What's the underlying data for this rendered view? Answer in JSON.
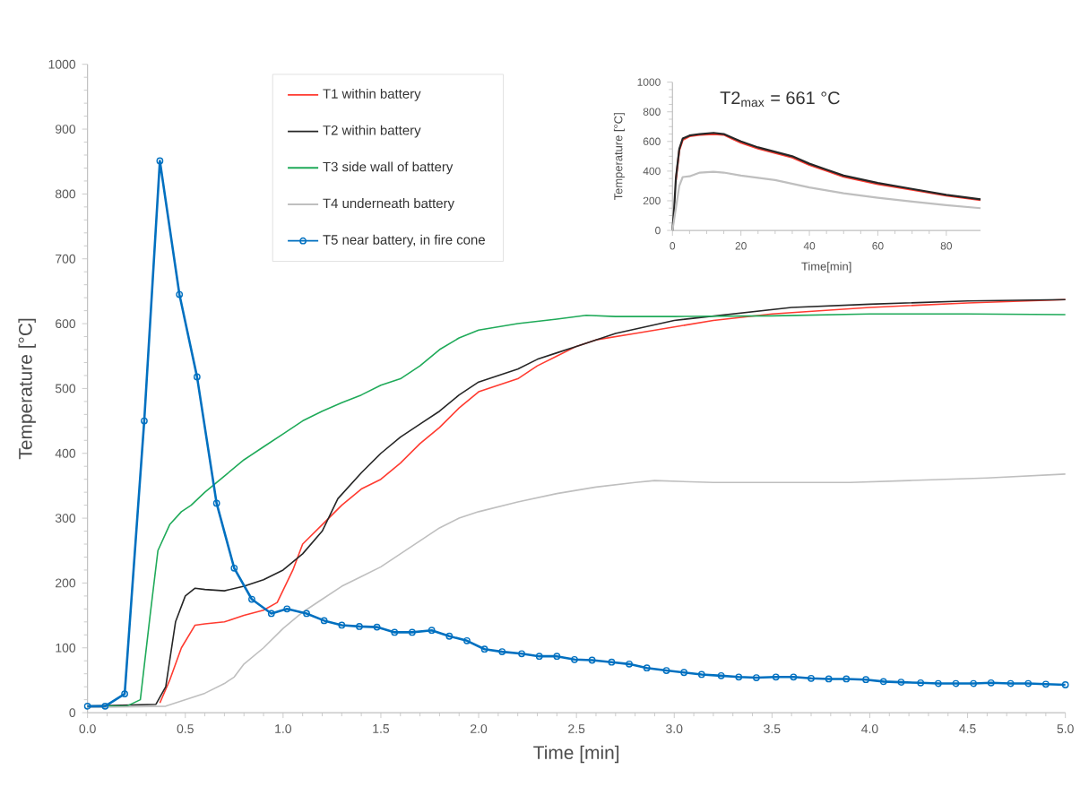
{
  "chart_data": [
    {
      "type": "line",
      "xlabel": "Time [min]",
      "ylabel": "Temperature [°C]",
      "xlim": [
        0,
        5
      ],
      "xticks": [
        {
          "value": 0,
          "label": "0.0"
        },
        {
          "value": 0.5,
          "label": "0.5"
        },
        {
          "value": 1,
          "label": "1.0"
        },
        {
          "value": 1.5,
          "label": "1.5"
        },
        {
          "value": 2,
          "label": "2.0"
        },
        {
          "value": 2.5,
          "label": "2.5"
        },
        {
          "value": 3,
          "label": "3.0"
        },
        {
          "value": 3.5,
          "label": "3.5"
        },
        {
          "value": 4,
          "label": "4.0"
        },
        {
          "value": 4.5,
          "label": "4.5"
        },
        {
          "value": 5,
          "label": "5.0"
        }
      ],
      "ylim": [
        0,
        1000
      ],
      "yticks": [
        0,
        100,
        200,
        300,
        400,
        500,
        600,
        700,
        800,
        900,
        1000
      ],
      "grid": false,
      "legend": "top",
      "line_style": "solid",
      "series": [
        {
          "name": "T1 within battery",
          "color": "#ff3b30",
          "marker": "none",
          "x": [
            0.37,
            0.42,
            0.48,
            0.55,
            0.6,
            0.7,
            0.8,
            0.9,
            0.97,
            1.05,
            1.1,
            1.2,
            1.3,
            1.4,
            1.5,
            1.6,
            1.7,
            1.8,
            1.9,
            2.0,
            2.1,
            2.2,
            2.3,
            2.4,
            2.5,
            2.6,
            2.8,
            3.0,
            3.2,
            3.5,
            4.0,
            4.5,
            5.0
          ],
          "values": [
            15,
            50,
            100,
            135,
            137,
            140,
            150,
            158,
            170,
            220,
            260,
            290,
            320,
            345,
            360,
            385,
            415,
            440,
            470,
            495,
            505,
            515,
            535,
            550,
            565,
            575,
            585,
            595,
            605,
            615,
            625,
            632,
            637
          ]
        },
        {
          "name": "T2 within battery",
          "color": "#262626",
          "marker": "none",
          "x": [
            0,
            0.35,
            0.4,
            0.45,
            0.5,
            0.55,
            0.6,
            0.7,
            0.8,
            0.9,
            1.0,
            1.1,
            1.2,
            1.28,
            1.4,
            1.5,
            1.6,
            1.7,
            1.8,
            1.9,
            2.0,
            2.1,
            2.2,
            2.3,
            2.4,
            2.5,
            2.7,
            3.0,
            3.3,
            3.6,
            4.0,
            4.5,
            5.0
          ],
          "values": [
            10,
            13,
            40,
            140,
            180,
            192,
            190,
            188,
            195,
            205,
            220,
            245,
            280,
            330,
            370,
            400,
            425,
            445,
            465,
            490,
            510,
            520,
            530,
            545,
            555,
            565,
            585,
            605,
            615,
            625,
            630,
            635,
            637
          ]
        },
        {
          "name": "T3 side wall of battery",
          "color": "#1faa59",
          "marker": "none",
          "x": [
            0,
            0.2,
            0.27,
            0.32,
            0.36,
            0.42,
            0.48,
            0.53,
            0.6,
            0.7,
            0.8,
            0.9,
            1.0,
            1.1,
            1.2,
            1.3,
            1.4,
            1.5,
            1.6,
            1.7,
            1.8,
            1.9,
            2.0,
            2.2,
            2.4,
            2.55,
            2.7,
            3.0,
            3.5,
            4.0,
            4.5,
            5.0
          ],
          "values": [
            10,
            10,
            20,
            150,
            250,
            290,
            310,
            320,
            340,
            365,
            390,
            410,
            430,
            450,
            465,
            478,
            490,
            505,
            515,
            535,
            560,
            578,
            590,
            600,
            607,
            613,
            611,
            611,
            612,
            615,
            615,
            614
          ]
        },
        {
          "name": "T4 underneath battery",
          "color": "#bfbfbf",
          "marker": "none",
          "x": [
            0,
            0.4,
            0.5,
            0.6,
            0.7,
            0.75,
            0.8,
            0.9,
            1.0,
            1.1,
            1.2,
            1.3,
            1.4,
            1.5,
            1.6,
            1.7,
            1.8,
            1.9,
            2.0,
            2.2,
            2.4,
            2.6,
            2.8,
            2.9,
            3.2,
            3.5,
            3.9,
            4.2,
            4.6,
            5.0
          ],
          "values": [
            8,
            10,
            20,
            30,
            45,
            55,
            75,
            100,
            130,
            155,
            175,
            195,
            210,
            225,
            245,
            265,
            285,
            300,
            310,
            325,
            338,
            348,
            355,
            358,
            355,
            355,
            355,
            358,
            362,
            368
          ]
        },
        {
          "name": "T5 near battery, in fire cone",
          "color": "#0070c0",
          "marker": "circle",
          "x": [
            0,
            0.09,
            0.19,
            0.29,
            0.37,
            0.47,
            0.56,
            0.66,
            0.75,
            0.84,
            0.94,
            1.02,
            1.12,
            1.21,
            1.3,
            1.39,
            1.48,
            1.57,
            1.66,
            1.76,
            1.85,
            1.94,
            2.03,
            2.12,
            2.22,
            2.31,
            2.4,
            2.49,
            2.58,
            2.68,
            2.77,
            2.86,
            2.96,
            3.05,
            3.14,
            3.24,
            3.33,
            3.42,
            3.52,
            3.61,
            3.7,
            3.79,
            3.88,
            3.98,
            4.07,
            4.16,
            4.26,
            4.35,
            4.44,
            4.53,
            4.62,
            4.72,
            4.81,
            4.9,
            5.0
          ],
          "values": [
            10,
            10,
            29,
            450,
            851,
            645,
            518,
            323,
            223,
            175,
            153,
            160,
            153,
            142,
            135,
            133,
            132,
            124,
            124,
            127,
            118,
            111,
            98,
            94,
            91,
            87,
            87,
            82,
            81,
            78,
            75,
            69,
            65,
            62,
            59,
            57,
            55,
            54,
            55,
            55,
            53,
            52,
            52,
            51,
            48,
            47,
            46,
            45,
            45,
            45,
            46,
            45,
            45,
            44,
            43
          ]
        }
      ]
    },
    {
      "type": "line",
      "xlabel": "Time[min]",
      "ylabel": "Temperature [°C]",
      "xlim": [
        0,
        90
      ],
      "xticks": [
        0,
        20,
        40,
        60,
        80
      ],
      "ylim": [
        0,
        1000
      ],
      "yticks": [
        0,
        200,
        400,
        600,
        800,
        1000
      ],
      "grid": false,
      "legend": false,
      "line_style": "solid",
      "annotations": [
        {
          "text": "T2$_{max}$ = 661 °C",
          "x": 12,
          "y": 661
        }
      ],
      "series": [
        {
          "color": "#ff3b30",
          "marker": "none",
          "x": [
            1,
            2,
            3,
            5,
            8,
            12,
            15,
            18,
            20,
            25,
            30,
            35,
            40,
            45,
            50,
            60,
            70,
            80,
            90
          ],
          "values": [
            340,
            540,
            610,
            635,
            645,
            650,
            645,
            612,
            592,
            552,
            522,
            492,
            442,
            402,
            362,
            312,
            275,
            235,
            205
          ]
        },
        {
          "color": "#262626",
          "marker": "none",
          "x": [
            0,
            0.5,
            1,
            2,
            3,
            5,
            8,
            12,
            15,
            18,
            20,
            25,
            30,
            35,
            40,
            45,
            50,
            60,
            70,
            80,
            90
          ],
          "values": [
            0,
            150,
            350,
            550,
            620,
            640,
            650,
            658,
            650,
            620,
            600,
            560,
            530,
            500,
            450,
            410,
            370,
            320,
            280,
            240,
            210
          ]
        },
        {
          "color": "#bfbfbf",
          "marker": "none",
          "x": [
            0,
            1,
            2,
            3,
            5,
            8,
            12,
            15,
            20,
            30,
            40,
            50,
            60,
            70,
            80,
            90
          ],
          "values": [
            0,
            150,
            300,
            360,
            365,
            390,
            395,
            390,
            370,
            340,
            290,
            250,
            220,
            195,
            170,
            150
          ]
        }
      ]
    }
  ]
}
